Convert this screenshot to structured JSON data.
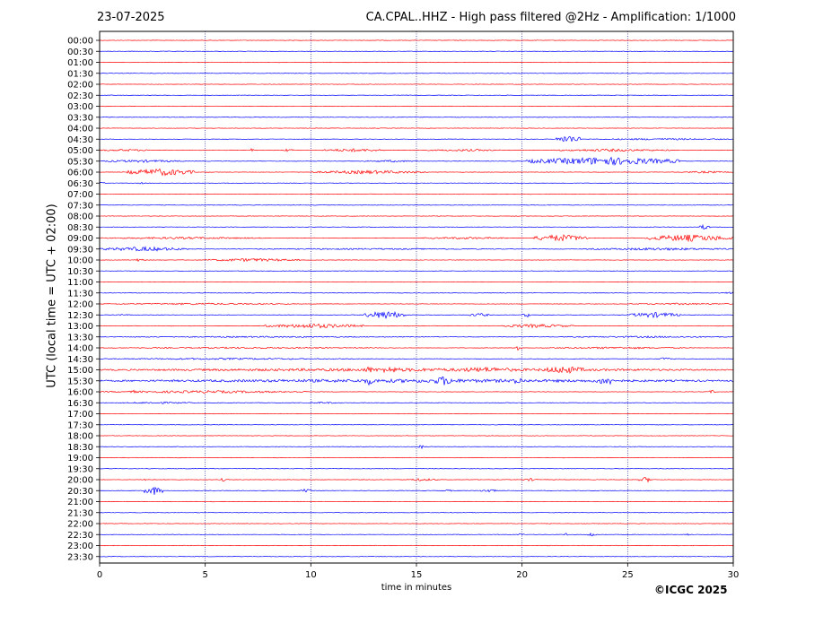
{
  "header": {
    "date": "23-07-2025",
    "station_title": "CA.CPAL..HHZ - High pass filtered @2Hz - Amplification: 1/1000"
  },
  "footer": {
    "copyright": "©ICGC 2025"
  },
  "chart_data": {
    "type": "line",
    "title": "CA.CPAL..HHZ - High pass filtered @2Hz - Amplification: 1/1000",
    "xlabel": "time in minutes",
    "ylabel": "UTC (local time = UTC + 02:00)",
    "xlim": [
      0,
      30
    ],
    "x_ticks": [
      0,
      5,
      10,
      15,
      20,
      25,
      30
    ],
    "vertical_gridlines": [
      5,
      10,
      15,
      20,
      25
    ],
    "grid": "vertical dotted",
    "trace_colors": [
      "#ff0000",
      "#0000ff"
    ],
    "rows": [
      "00:00",
      "00:30",
      "01:00",
      "01:30",
      "02:00",
      "02:30",
      "03:00",
      "03:30",
      "04:00",
      "04:30",
      "05:00",
      "05:30",
      "06:00",
      "06:30",
      "07:00",
      "07:30",
      "08:00",
      "08:30",
      "09:00",
      "09:30",
      "10:00",
      "10:30",
      "11:00",
      "11:30",
      "12:00",
      "12:30",
      "13:00",
      "13:30",
      "14:00",
      "14:30",
      "15:00",
      "15:30",
      "16:00",
      "16:30",
      "17:00",
      "17:30",
      "18:00",
      "18:30",
      "19:00",
      "19:30",
      "20:00",
      "20:30",
      "21:00",
      "21:30",
      "22:00",
      "22:30",
      "23:00",
      "23:30"
    ],
    "events": [
      {
        "row": 9,
        "start": 21.6,
        "end": 22.8,
        "amp": 4.5
      },
      {
        "row": 9,
        "start": 23.0,
        "end": 30.0,
        "amp": 1.0
      },
      {
        "row": 10,
        "start": 0.0,
        "end": 2.5,
        "amp": 1.2
      },
      {
        "row": 10,
        "start": 7.0,
        "end": 7.3,
        "amp": 2.0
      },
      {
        "row": 10,
        "start": 8.7,
        "end": 9.2,
        "amp": 2.0
      },
      {
        "row": 10,
        "start": 10.5,
        "end": 13.5,
        "amp": 1.8
      },
      {
        "row": 10,
        "start": 15.5,
        "end": 19.0,
        "amp": 1.2
      },
      {
        "row": 10,
        "start": 21.5,
        "end": 27.0,
        "amp": 1.5
      },
      {
        "row": 11,
        "start": 0.0,
        "end": 4.0,
        "amp": 1.5
      },
      {
        "row": 11,
        "start": 12.5,
        "end": 15.0,
        "amp": 1.2
      },
      {
        "row": 11,
        "start": 20.2,
        "end": 27.5,
        "amp": 4.5
      },
      {
        "row": 12,
        "start": 1.3,
        "end": 4.5,
        "amp": 4.0
      },
      {
        "row": 12,
        "start": 10.0,
        "end": 15.5,
        "amp": 2.0
      },
      {
        "row": 12,
        "start": 27.5,
        "end": 30.0,
        "amp": 1.2
      },
      {
        "row": 13,
        "start": 0.0,
        "end": 0.3,
        "amp": 1.5
      },
      {
        "row": 13,
        "start": 1.9,
        "end": 2.1,
        "amp": 1.5
      },
      {
        "row": 17,
        "start": 28.4,
        "end": 28.9,
        "amp": 3.0
      },
      {
        "row": 18,
        "start": 0.0,
        "end": 8.0,
        "amp": 1.2
      },
      {
        "row": 18,
        "start": 15.2,
        "end": 19.5,
        "amp": 1.2
      },
      {
        "row": 18,
        "start": 20.5,
        "end": 23.2,
        "amp": 4.0
      },
      {
        "row": 18,
        "start": 25.8,
        "end": 30.0,
        "amp": 4.0
      },
      {
        "row": 19,
        "start": 0.0,
        "end": 4.2,
        "amp": 2.5
      },
      {
        "row": 19,
        "start": 6.0,
        "end": 20.0,
        "amp": 0.8
      },
      {
        "row": 19,
        "start": 23.0,
        "end": 30.0,
        "amp": 1.5
      },
      {
        "row": 20,
        "start": 1.5,
        "end": 2.2,
        "amp": 1.5
      },
      {
        "row": 20,
        "start": 5.0,
        "end": 9.5,
        "amp": 1.8
      },
      {
        "row": 23,
        "start": 29.6,
        "end": 30.0,
        "amp": 1.5
      },
      {
        "row": 24,
        "start": 0.0,
        "end": 9.5,
        "amp": 1.0
      },
      {
        "row": 24,
        "start": 25.0,
        "end": 30.0,
        "amp": 1.0
      },
      {
        "row": 25,
        "start": 0.5,
        "end": 1.5,
        "amp": 1.0
      },
      {
        "row": 25,
        "start": 12.5,
        "end": 14.5,
        "amp": 4.5
      },
      {
        "row": 25,
        "start": 17.5,
        "end": 18.5,
        "amp": 2.0
      },
      {
        "row": 25,
        "start": 20.0,
        "end": 20.4,
        "amp": 3.0
      },
      {
        "row": 25,
        "start": 25.0,
        "end": 27.5,
        "amp": 3.0
      },
      {
        "row": 26,
        "start": 7.8,
        "end": 12.5,
        "amp": 2.5
      },
      {
        "row": 26,
        "start": 18.8,
        "end": 22.5,
        "amp": 2.0
      },
      {
        "row": 27,
        "start": 0.5,
        "end": 15.0,
        "amp": 0.8
      },
      {
        "row": 27,
        "start": 21.5,
        "end": 30.0,
        "amp": 1.0
      },
      {
        "row": 28,
        "start": 0.0,
        "end": 14.0,
        "amp": 0.9
      },
      {
        "row": 28,
        "start": 19.6,
        "end": 20.0,
        "amp": 3.5
      },
      {
        "row": 28,
        "start": 21.0,
        "end": 28.0,
        "amp": 1.2
      },
      {
        "row": 29,
        "start": 0.0,
        "end": 12.0,
        "amp": 1.0
      },
      {
        "row": 29,
        "start": 26.5,
        "end": 27.0,
        "amp": 2.0
      },
      {
        "row": 30,
        "start": 0.0,
        "end": 30.0,
        "amp": 1.8
      },
      {
        "row": 30,
        "start": 12.5,
        "end": 13.0,
        "amp": 4.0
      },
      {
        "row": 30,
        "start": 13.0,
        "end": 14.5,
        "amp": 3.5
      },
      {
        "row": 30,
        "start": 16.5,
        "end": 20.0,
        "amp": 3.0
      },
      {
        "row": 30,
        "start": 21.0,
        "end": 23.0,
        "amp": 4.5
      },
      {
        "row": 31,
        "start": 0.0,
        "end": 30.0,
        "amp": 2.0
      },
      {
        "row": 31,
        "start": 12.5,
        "end": 13.0,
        "amp": 4.5
      },
      {
        "row": 31,
        "start": 15.8,
        "end": 16.8,
        "amp": 5.5
      },
      {
        "row": 31,
        "start": 19.6,
        "end": 20.0,
        "amp": 5.0
      },
      {
        "row": 31,
        "start": 23.5,
        "end": 24.5,
        "amp": 5.0
      },
      {
        "row": 32,
        "start": 0.0,
        "end": 10.0,
        "amp": 1.5
      },
      {
        "row": 32,
        "start": 1.5,
        "end": 1.7,
        "amp": 3.0
      },
      {
        "row": 32,
        "start": 28.8,
        "end": 29.2,
        "amp": 2.0
      },
      {
        "row": 33,
        "start": 1.0,
        "end": 4.5,
        "amp": 1.2
      },
      {
        "row": 33,
        "start": 9.8,
        "end": 11.5,
        "amp": 1.0
      },
      {
        "row": 35,
        "start": 19.5,
        "end": 20.0,
        "amp": 0.8
      },
      {
        "row": 37,
        "start": 15.1,
        "end": 15.3,
        "amp": 3.0
      },
      {
        "row": 40,
        "start": 2.0,
        "end": 2.4,
        "amp": 1.5
      },
      {
        "row": 40,
        "start": 5.7,
        "end": 6.0,
        "amp": 2.0
      },
      {
        "row": 40,
        "start": 14.5,
        "end": 16.0,
        "amp": 1.5
      },
      {
        "row": 40,
        "start": 20.0,
        "end": 20.8,
        "amp": 1.5
      },
      {
        "row": 40,
        "start": 25.5,
        "end": 26.2,
        "amp": 3.0
      },
      {
        "row": 41,
        "start": 2.1,
        "end": 3.0,
        "amp": 5.0
      },
      {
        "row": 41,
        "start": 9.5,
        "end": 10.0,
        "amp": 2.0
      },
      {
        "row": 41,
        "start": 16.0,
        "end": 17.0,
        "amp": 1.0
      },
      {
        "row": 41,
        "start": 18.0,
        "end": 18.8,
        "amp": 2.0
      },
      {
        "row": 45,
        "start": 19.8,
        "end": 20.1,
        "amp": 1.5
      },
      {
        "row": 45,
        "start": 22.0,
        "end": 22.2,
        "amp": 2.0
      },
      {
        "row": 45,
        "start": 23.1,
        "end": 23.5,
        "amp": 2.5
      },
      {
        "row": 45,
        "start": 27.7,
        "end": 28.0,
        "amp": 1.0
      }
    ]
  }
}
